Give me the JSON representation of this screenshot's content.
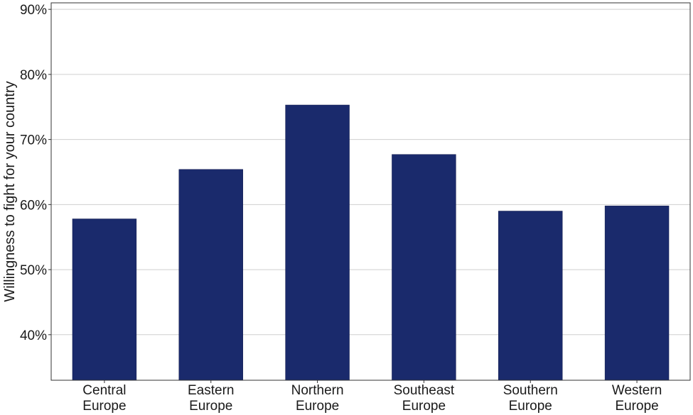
{
  "chart_data": {
    "type": "bar",
    "title": "",
    "xlabel": "",
    "ylabel": "Willingness to fight for your country",
    "categories": [
      [
        "Central",
        "Europe"
      ],
      [
        "Eastern",
        "Europe"
      ],
      [
        "Northern",
        "Europe"
      ],
      [
        "Southeast",
        "Europe"
      ],
      [
        "Southern",
        "Europe"
      ],
      [
        "Western",
        "Europe"
      ]
    ],
    "values": [
      57.8,
      65.4,
      75.3,
      67.7,
      59.0,
      59.8
    ],
    "ylim": [
      33,
      91
    ],
    "yticks": [
      40,
      50,
      60,
      70,
      80,
      90
    ],
    "ytick_labels": [
      "40%",
      "50%",
      "60%",
      "70%",
      "80%",
      "90%"
    ],
    "grid": "horizontal",
    "legend": "none",
    "bar_color": "#1a2a6c",
    "grid_color": "#cfcfcf",
    "frame_color": "#333333"
  }
}
